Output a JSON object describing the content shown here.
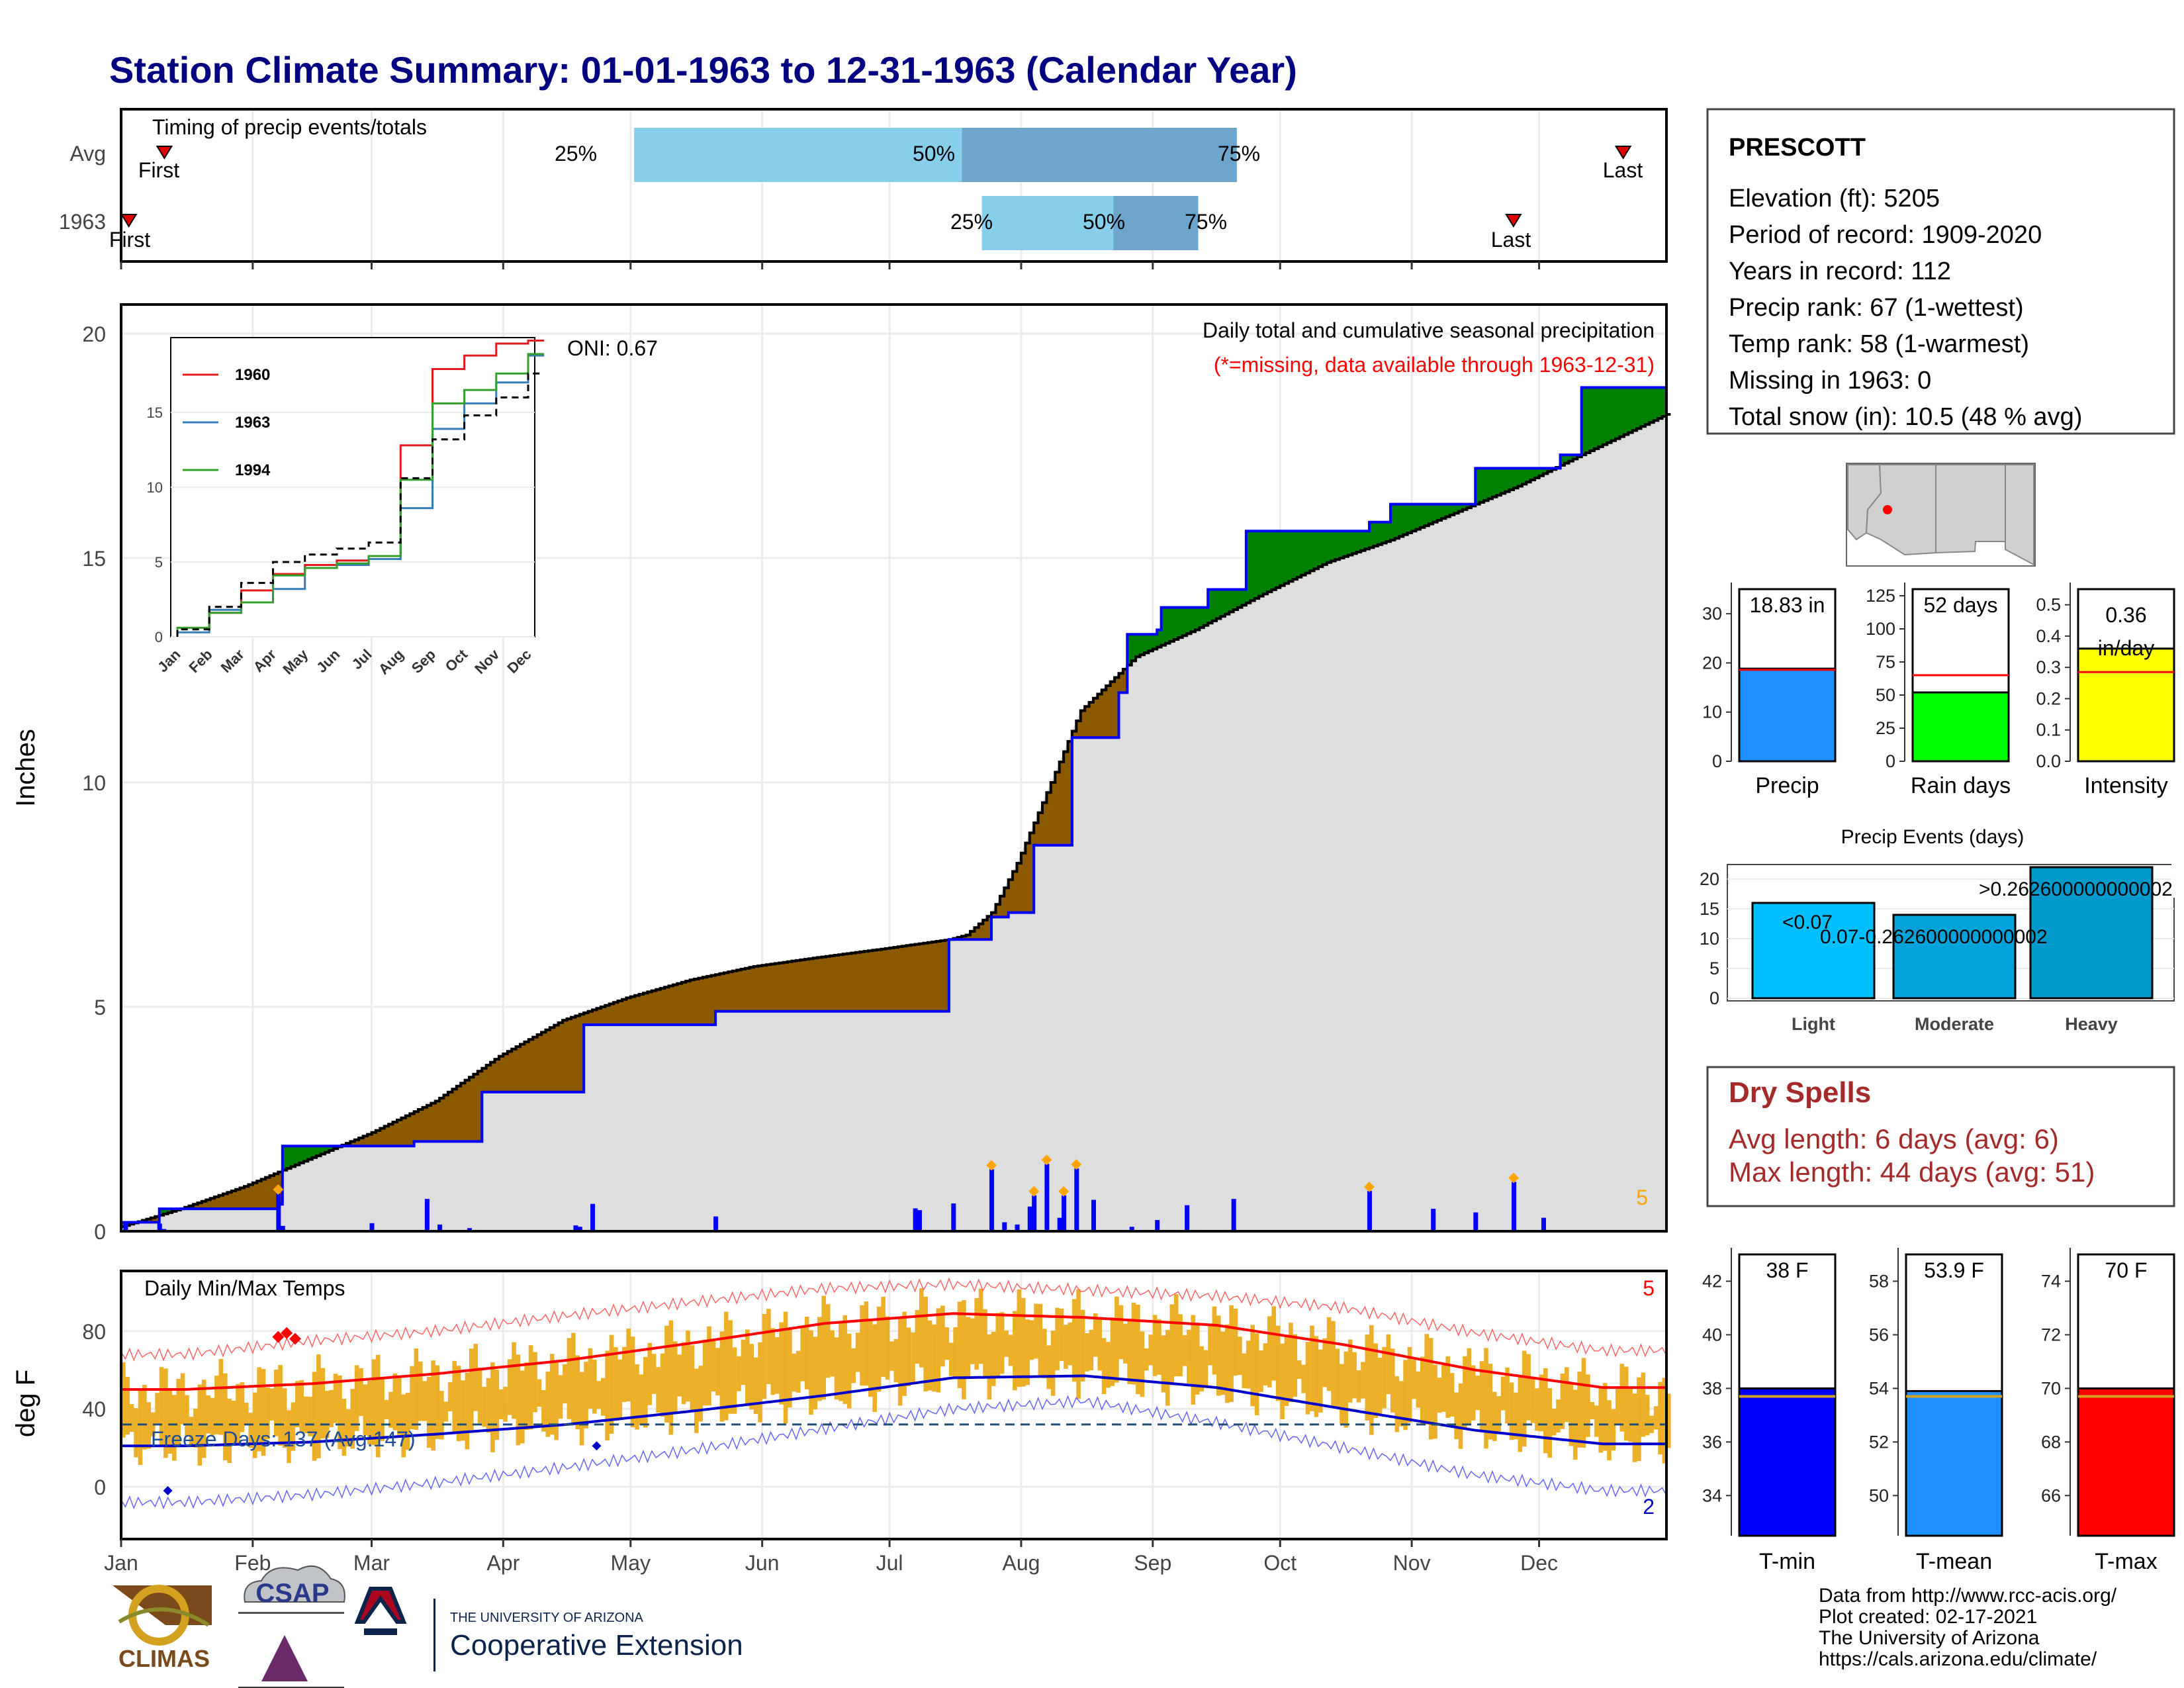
{
  "title": "Station Climate Summary: 01-01-1963 to 12-31-1963 (Calendar Year)",
  "colors": {
    "title": "#000080",
    "precip_above": "#8B5A00",
    "precip_below": "#008000",
    "normal_fill": "#DEDEDE",
    "cumulative_line": "#0000FF",
    "temp_bars": "#EBB028",
    "tmax_line": "#FF0000",
    "tmin_line": "#0000CC",
    "dry_spells": "#A52A2A",
    "missing_note": "#FF0000",
    "quantile_light": "#87CEEB",
    "quantile_dark": "#6CA6CD"
  },
  "timing": {
    "title": "Timing of precip events/totals",
    "rows": [
      "Avg",
      "1963"
    ],
    "avg": {
      "first_label": "First",
      "last_label": "Last",
      "q25": "25%",
      "q50": "50%",
      "q75": "75%"
    },
    "year": {
      "first_label": "First",
      "last_label": "Last",
      "q25": "25%",
      "q50": "50%",
      "q75": "75%"
    }
  },
  "precip_panel": {
    "ylabel": "Inches",
    "yticks": [
      "0",
      "5",
      "10",
      "15",
      "20"
    ],
    "title_line1": "Daily total and cumulative seasonal precipitation",
    "title_line2": "(*=missing, data available through 1963-12-31)",
    "oni": "ONI: 0.67",
    "extreme_count": "5",
    "inset": {
      "legend": [
        "1960",
        "1963",
        "1994"
      ],
      "yticks": [
        "0",
        "5",
        "10",
        "15"
      ],
      "months": [
        "Jan",
        "Feb",
        "Mar",
        "Apr",
        "May",
        "Jun",
        "Jul",
        "Aug",
        "Sep",
        "Oct",
        "Nov",
        "Dec"
      ]
    }
  },
  "temp_panel": {
    "ylabel": "deg F",
    "title": "Daily Min/Max Temps",
    "yticks": [
      "0",
      "40",
      "80"
    ],
    "freeze_days": "Freeze Days: 137 (Avg:147)",
    "count_max": "5",
    "count_min": "2"
  },
  "months": [
    "Jan",
    "Feb",
    "Mar",
    "Apr",
    "May",
    "Jun",
    "Jul",
    "Aug",
    "Sep",
    "Oct",
    "Nov",
    "Dec"
  ],
  "station": {
    "name": "PRESCOTT",
    "lines": [
      "Elevation (ft): 5205",
      "Period of record: 1909-2020",
      "Years in record: 112",
      "Precip rank: 67 (1-wettest)",
      "Temp rank: 58 (1-warmest)",
      "Missing in 1963: 0",
      "Total snow (in): 10.5 (48 % avg)"
    ]
  },
  "summary_bars": [
    {
      "label": "Precip",
      "value_label": "18.83 in",
      "yticks": [
        "0",
        "10",
        "20",
        "30"
      ]
    },
    {
      "label": "Rain days",
      "value_label": "52 days",
      "yticks": [
        "0",
        "25",
        "50",
        "75",
        "100",
        "125"
      ]
    },
    {
      "label": "Intensity",
      "value_label": "0.36",
      "value_label2": "in/day",
      "yticks": [
        "0.0",
        "0.1",
        "0.2",
        "0.3",
        "0.4",
        "0.5"
      ]
    }
  ],
  "events": {
    "title": "Precip Events (days)",
    "yticks": [
      "0",
      "5",
      "10",
      "15",
      "20"
    ],
    "categories": [
      "Light",
      "Moderate",
      "Heavy"
    ],
    "bar_labels": [
      "<0.07",
      "0.07-0.262600000000002",
      ">0.262600000000002"
    ]
  },
  "dry_spells": {
    "title": "Dry Spells",
    "avg_line": "Avg length: 6 days (avg: 6)",
    "max_line": "Max length: 44 days (avg: 51)"
  },
  "temp_bars": [
    {
      "label": "T-min",
      "value_label": "38 F",
      "yticks": [
        "34",
        "36",
        "38",
        "40",
        "42"
      ]
    },
    {
      "label": "T-mean",
      "value_label": "53.9 F",
      "yticks": [
        "50",
        "52",
        "54",
        "56",
        "58"
      ]
    },
    {
      "label": "T-max",
      "value_label": "70 F",
      "yticks": [
        "66",
        "68",
        "70",
        "72",
        "74"
      ]
    }
  ],
  "footer": {
    "lines": [
      "Data from http://www.rcc-acis.org/",
      "Plot created: 02-17-2021",
      "The University of Arizona",
      "https://cals.arizona.edu/climate/"
    ],
    "logo_climas": "CLIMAS",
    "logo_csap": "CSAP",
    "ua_small": "THE UNIVERSITY OF ARIZONA",
    "ua_large": "Cooperative Extension"
  },
  "chart_data": [
    {
      "type": "bar",
      "title": "Timing of precip events/totals",
      "categories": [
        "Avg",
        "1963"
      ],
      "series": [
        {
          "name": "First",
          "values": [
            0.028,
            0.005
          ]
        },
        {
          "name": "25%",
          "values": [
            0.332,
            0.557
          ]
        },
        {
          "name": "50%",
          "values": [
            0.544,
            0.642
          ]
        },
        {
          "name": "75%",
          "values": [
            0.722,
            0.697
          ]
        },
        {
          "name": "Last",
          "values": [
            0.972,
            0.901
          ]
        }
      ]
    },
    {
      "type": "area",
      "title": "Daily total and cumulative seasonal precipitation",
      "xlabel": "",
      "ylabel": "Inches",
      "ylim": [
        0,
        20
      ],
      "series": [
        {
          "name": "average cumulative",
          "x": [
            1,
            15,
            30,
            45,
            60,
            75,
            90,
            105,
            120,
            135,
            150,
            165,
            181,
            196,
            200,
            206,
            212,
            220,
            227,
            240,
            254,
            270,
            285,
            300,
            315,
            330,
            345,
            365
          ],
          "values": [
            0.1,
            0.5,
            1.0,
            1.6,
            2.2,
            2.9,
            3.9,
            4.7,
            5.2,
            5.6,
            5.9,
            6.1,
            6.3,
            6.5,
            6.6,
            7.1,
            8.2,
            10.0,
            11.6,
            12.8,
            13.4,
            14.2,
            14.9,
            15.4,
            16.0,
            16.6,
            17.3,
            18.2
          ]
        },
        {
          "name": "1963 cumulative",
          "x": [
            1,
            10,
            38,
            39,
            60,
            70,
            86,
            91,
            110,
            120,
            141,
            160,
            190,
            196,
            205,
            206,
            210,
            215,
            216,
            221,
            225,
            236,
            238,
            245,
            246,
            256,
            257,
            265,
            266,
            275,
            295,
            300,
            310,
            320,
            325,
            340,
            345,
            365
          ],
          "values": [
            0.2,
            0.5,
            0.6,
            1.9,
            1.9,
            2.0,
            3.1,
            3.1,
            4.6,
            4.6,
            4.9,
            4.9,
            4.9,
            6.5,
            6.5,
            7.0,
            7.1,
            7.1,
            8.6,
            8.6,
            11.0,
            12.0,
            13.3,
            13.4,
            13.9,
            13.9,
            14.3,
            14.3,
            15.6,
            15.6,
            15.8,
            16.2,
            16.2,
            17.0,
            17.0,
            17.3,
            18.8,
            18.8
          ]
        },
        {
          "name": "daily precip",
          "x": [
            2,
            10,
            11,
            38,
            39,
            60,
            73,
            76,
            83,
            108,
            109,
            112,
            141,
            188,
            189,
            197,
            206,
            209,
            212,
            215,
            216,
            219,
            222,
            223,
            226,
            230,
            239,
            245,
            252,
            263,
            295,
            310,
            320,
            329,
            336
          ],
          "values": [
            0.22,
            0.17,
            0.05,
            0.84,
            0.12,
            0.18,
            0.72,
            0.15,
            0.07,
            0.13,
            0.1,
            0.61,
            0.33,
            0.51,
            0.47,
            0.62,
            1.38,
            0.2,
            0.15,
            0.55,
            0.8,
            1.5,
            0.3,
            0.8,
            1.4,
            0.7,
            0.1,
            0.25,
            0.58,
            0.72,
            0.9,
            0.5,
            0.42,
            1.1,
            0.3
          ]
        }
      ]
    },
    {
      "type": "line",
      "title": "",
      "xlabel": "",
      "ylabel": "",
      "ylim": [
        0,
        20
      ],
      "categories": [
        "Jan",
        "Feb",
        "Mar",
        "Apr",
        "May",
        "Jun",
        "Jul",
        "Aug",
        "Sep",
        "Oct",
        "Nov",
        "Dec"
      ],
      "series": [
        {
          "name": "1960",
          "values": [
            0.6,
            1.6,
            3.1,
            4.2,
            4.8,
            5.1,
            5.4,
            12.8,
            17.9,
            18.8,
            19.6,
            19.8
          ]
        },
        {
          "name": "1963",
          "values": [
            0.3,
            1.8,
            2.3,
            3.2,
            4.6,
            4.8,
            5.2,
            8.6,
            13.9,
            15.6,
            17.0,
            18.8
          ]
        },
        {
          "name": "1994",
          "values": [
            0.6,
            1.6,
            2.3,
            4.1,
            4.6,
            4.9,
            5.4,
            10.5,
            15.6,
            16.5,
            17.6,
            18.9
          ]
        },
        {
          "name": "average",
          "values": [
            0.5,
            2.0,
            3.6,
            5.0,
            5.5,
            5.9,
            6.3,
            10.6,
            13.2,
            14.8,
            16.0,
            17.6
          ]
        }
      ]
    },
    {
      "type": "bar",
      "title": "Daily Min/Max Temps",
      "xlabel": "",
      "ylabel": "deg F",
      "ylim": [
        -25,
        110
      ],
      "categories": [
        "Jan",
        "Feb",
        "Mar",
        "Apr",
        "May",
        "Jun",
        "Jul",
        "Aug",
        "Sep",
        "Oct",
        "Nov",
        "Dec"
      ],
      "series": [
        {
          "name": "avg max",
          "values": [
            50,
            53,
            58,
            65,
            74,
            84,
            89,
            87,
            83,
            73,
            60,
            51
          ]
        },
        {
          "name": "avg min",
          "values": [
            21,
            23,
            27,
            32,
            39,
            47,
            56,
            57,
            51,
            40,
            29,
            22
          ]
        },
        {
          "name": "record high",
          "values": [
            68,
            75,
            80,
            88,
            95,
            102,
            104,
            101,
            98,
            92,
            79,
            70
          ]
        },
        {
          "name": "record low",
          "values": [
            -8,
            -4,
            2,
            10,
            19,
            30,
            40,
            44,
            33,
            20,
            6,
            -2
          ]
        },
        {
          "name": "freeze line",
          "values": [
            32,
            32,
            32,
            32,
            32,
            32,
            32,
            32,
            32,
            32,
            32,
            32
          ]
        }
      ]
    },
    {
      "type": "bar",
      "title": "",
      "categories": [
        "Precip"
      ],
      "values": [
        18.83
      ],
      "ylim": [
        0,
        35
      ],
      "average": 18.6,
      "ylabel": ""
    },
    {
      "type": "bar",
      "title": "",
      "categories": [
        "Rain days"
      ],
      "values": [
        52
      ],
      "ylim": [
        0,
        130
      ],
      "average": 65,
      "ylabel": ""
    },
    {
      "type": "bar",
      "title": "",
      "categories": [
        "Intensity"
      ],
      "values": [
        0.36
      ],
      "ylim": [
        0,
        0.55
      ],
      "average": 0.285,
      "ylabel": ""
    },
    {
      "type": "bar",
      "title": "Precip Events (days)",
      "categories": [
        "Light",
        "Moderate",
        "Heavy"
      ],
      "values": [
        16,
        14,
        22
      ],
      "ylim": [
        0,
        22
      ]
    },
    {
      "type": "bar",
      "title": "",
      "categories": [
        "T-min"
      ],
      "values": [
        38
      ],
      "ylim": [
        32.5,
        43
      ],
      "average": 37.7
    },
    {
      "type": "bar",
      "title": "",
      "categories": [
        "T-mean"
      ],
      "values": [
        53.9
      ],
      "ylim": [
        48.5,
        59
      ],
      "average": 53.7
    },
    {
      "type": "bar",
      "title": "",
      "categories": [
        "T-max"
      ],
      "values": [
        70
      ],
      "ylim": [
        64.5,
        75
      ],
      "average": 69.7
    }
  ]
}
